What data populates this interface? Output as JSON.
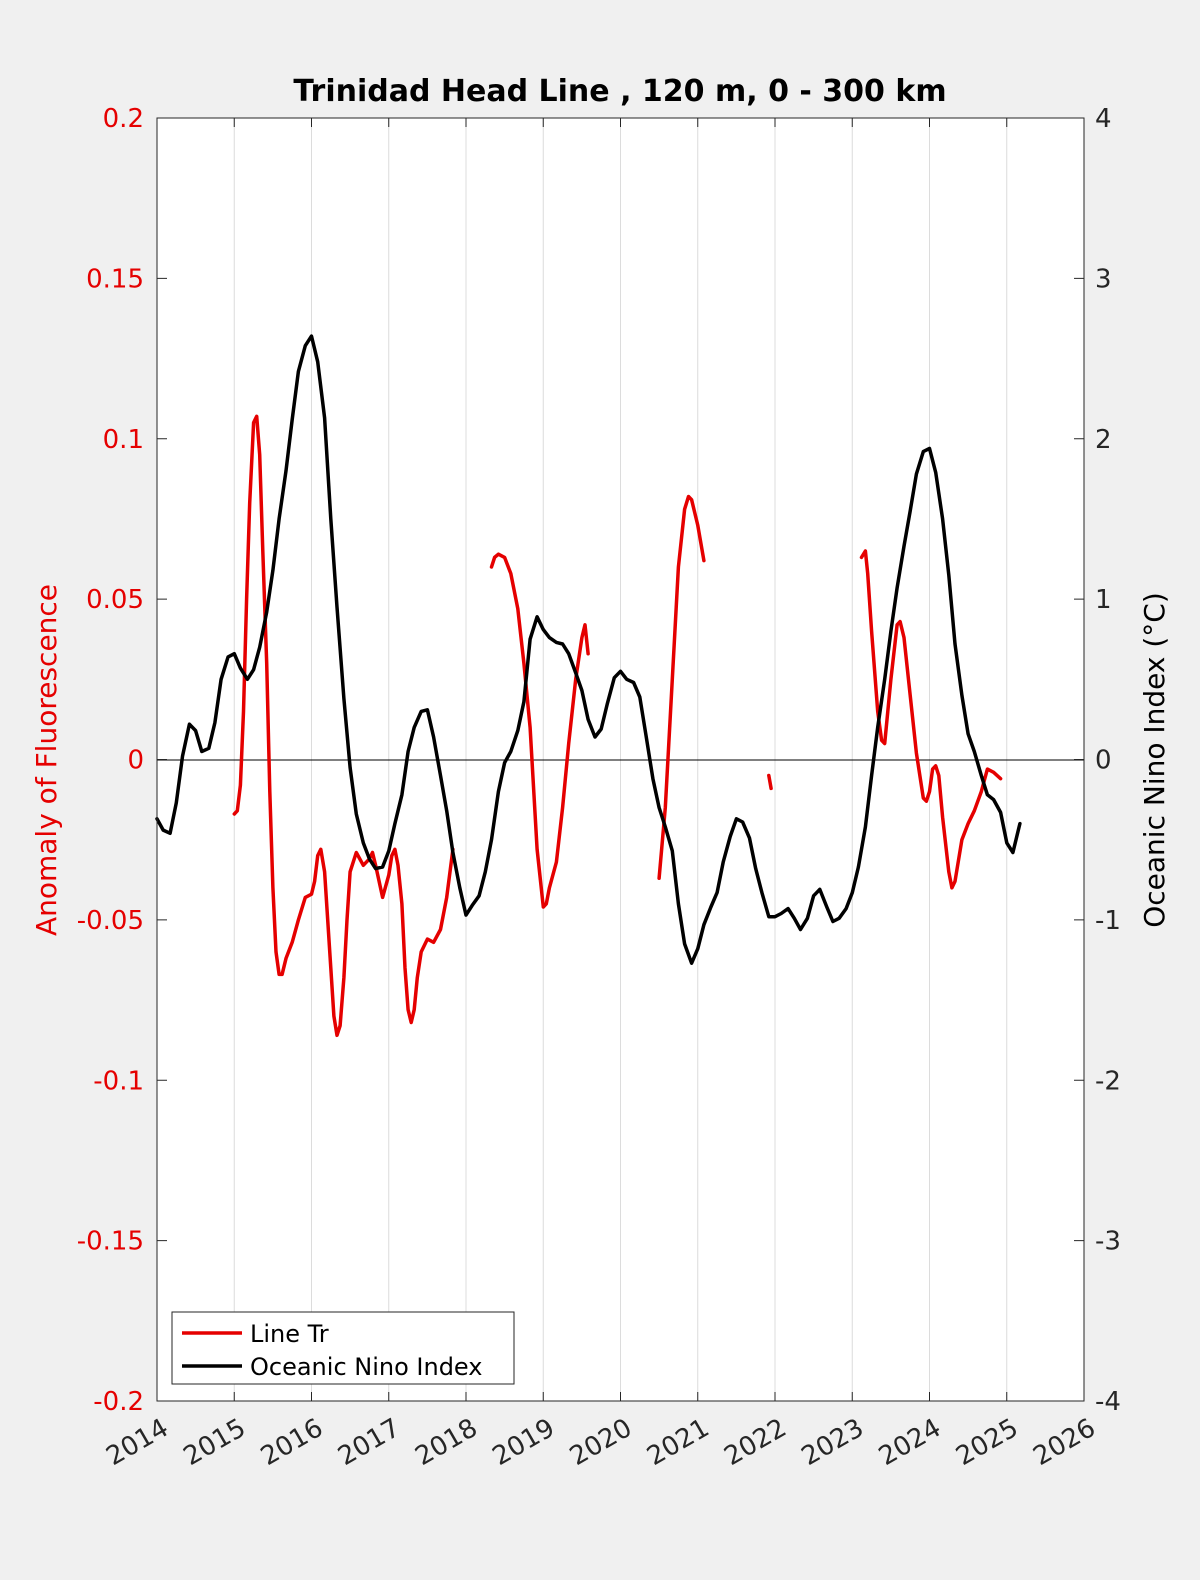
{
  "chart_data": {
    "type": "line",
    "title": "Trinidad Head Line , 120 m, 0 - 300 km",
    "xlabel": "",
    "ylabel_left": "Anomaly of Fluorescence",
    "ylabel_right": "Oceanic Nino Index (°C)",
    "xlim": [
      2014,
      2026
    ],
    "ylim_left": [
      -0.2,
      0.2
    ],
    "ylim_right": [
      -4,
      4
    ],
    "xticks": [
      "2014",
      "2015",
      "2016",
      "2017",
      "2018",
      "2019",
      "2020",
      "2021",
      "2022",
      "2023",
      "2024",
      "2025",
      "2026"
    ],
    "yticks_left": [
      "0.2",
      "0.15",
      "0.1",
      "0.05",
      "0",
      "-0.05",
      "-0.1",
      "-0.15",
      "-0.2"
    ],
    "yticks_right": [
      "4",
      "3",
      "2",
      "1",
      "0",
      "-1",
      "-2",
      "-3",
      "-4"
    ],
    "grid": "vertical",
    "legend_position": "bottom-left",
    "colors": {
      "line_tr": "#e50000",
      "oni": "#000000",
      "left_axis": "#e50000"
    },
    "series": [
      {
        "name": "Line Tr",
        "axis": "left",
        "segments": [
          [
            [
              2015.0,
              -0.017
            ],
            [
              2015.04,
              -0.016
            ],
            [
              2015.08,
              -0.008
            ],
            [
              2015.12,
              0.015
            ],
            [
              2015.16,
              0.05
            ],
            [
              2015.2,
              0.08
            ],
            [
              2015.25,
              0.105
            ],
            [
              2015.29,
              0.107
            ],
            [
              2015.33,
              0.095
            ],
            [
              2015.37,
              0.065
            ],
            [
              2015.42,
              0.03
            ],
            [
              2015.46,
              -0.01
            ],
            [
              2015.5,
              -0.04
            ],
            [
              2015.54,
              -0.06
            ],
            [
              2015.58,
              -0.067
            ],
            [
              2015.62,
              -0.067
            ],
            [
              2015.67,
              -0.062
            ],
            [
              2015.75,
              -0.057
            ],
            [
              2015.83,
              -0.05
            ],
            [
              2015.92,
              -0.043
            ],
            [
              2016.0,
              -0.042
            ],
            [
              2016.04,
              -0.038
            ],
            [
              2016.08,
              -0.03
            ],
            [
              2016.12,
              -0.028
            ],
            [
              2016.17,
              -0.035
            ],
            [
              2016.21,
              -0.05
            ],
            [
              2016.25,
              -0.065
            ],
            [
              2016.29,
              -0.08
            ],
            [
              2016.33,
              -0.086
            ],
            [
              2016.37,
              -0.083
            ],
            [
              2016.42,
              -0.068
            ],
            [
              2016.46,
              -0.05
            ],
            [
              2016.5,
              -0.035
            ],
            [
              2016.58,
              -0.029
            ],
            [
              2016.67,
              -0.033
            ],
            [
              2016.75,
              -0.031
            ],
            [
              2016.79,
              -0.029
            ],
            [
              2016.83,
              -0.033
            ],
            [
              2016.92,
              -0.043
            ],
            [
              2017.0,
              -0.036
            ],
            [
              2017.04,
              -0.03
            ],
            [
              2017.08,
              -0.028
            ],
            [
              2017.12,
              -0.033
            ],
            [
              2017.17,
              -0.045
            ],
            [
              2017.21,
              -0.065
            ],
            [
              2017.25,
              -0.078
            ],
            [
              2017.29,
              -0.082
            ],
            [
              2017.33,
              -0.078
            ],
            [
              2017.37,
              -0.068
            ],
            [
              2017.42,
              -0.06
            ],
            [
              2017.5,
              -0.056
            ],
            [
              2017.58,
              -0.057
            ],
            [
              2017.67,
              -0.053
            ],
            [
              2017.75,
              -0.043
            ],
            [
              2017.83,
              -0.028
            ]
          ],
          [
            [
              2018.33,
              0.06
            ],
            [
              2018.37,
              0.063
            ],
            [
              2018.42,
              0.064
            ],
            [
              2018.5,
              0.063
            ],
            [
              2018.58,
              0.058
            ],
            [
              2018.67,
              0.047
            ],
            [
              2018.75,
              0.03
            ],
            [
              2018.83,
              0.01
            ],
            [
              2018.92,
              -0.028
            ],
            [
              2019.0,
              -0.046
            ],
            [
              2019.04,
              -0.045
            ],
            [
              2019.08,
              -0.04
            ],
            [
              2019.17,
              -0.032
            ],
            [
              2019.25,
              -0.015
            ],
            [
              2019.33,
              0.005
            ],
            [
              2019.42,
              0.025
            ],
            [
              2019.5,
              0.038
            ],
            [
              2019.54,
              0.042
            ],
            [
              2019.58,
              0.033
            ]
          ],
          [
            [
              2020.5,
              -0.037
            ],
            [
              2020.58,
              -0.015
            ],
            [
              2020.67,
              0.025
            ],
            [
              2020.75,
              0.06
            ],
            [
              2020.83,
              0.078
            ],
            [
              2020.88,
              0.082
            ],
            [
              2020.92,
              0.081
            ],
            [
              2021.0,
              0.073
            ],
            [
              2021.08,
              0.062
            ]
          ],
          [
            [
              2021.92,
              -0.005
            ],
            [
              2021.95,
              -0.009
            ]
          ],
          [
            [
              2023.12,
              0.063
            ],
            [
              2023.17,
              0.065
            ],
            [
              2023.2,
              0.058
            ],
            [
              2023.25,
              0.04
            ],
            [
              2023.33,
              0.015
            ],
            [
              2023.38,
              0.006
            ],
            [
              2023.42,
              0.005
            ],
            [
              2023.5,
              0.025
            ],
            [
              2023.58,
              0.042
            ],
            [
              2023.62,
              0.043
            ],
            [
              2023.67,
              0.038
            ],
            [
              2023.75,
              0.02
            ],
            [
              2023.83,
              0.002
            ],
            [
              2023.92,
              -0.012
            ],
            [
              2023.96,
              -0.013
            ],
            [
              2024.0,
              -0.01
            ],
            [
              2024.04,
              -0.003
            ],
            [
              2024.08,
              -0.002
            ],
            [
              2024.12,
              -0.005
            ],
            [
              2024.17,
              -0.018
            ],
            [
              2024.25,
              -0.035
            ],
            [
              2024.29,
              -0.04
            ],
            [
              2024.33,
              -0.038
            ],
            [
              2024.42,
              -0.025
            ],
            [
              2024.5,
              -0.02
            ],
            [
              2024.58,
              -0.016
            ],
            [
              2024.67,
              -0.01
            ],
            [
              2024.75,
              -0.003
            ],
            [
              2024.83,
              -0.004
            ],
            [
              2024.92,
              -0.006
            ]
          ]
        ]
      },
      {
        "name": "Oceanic Nino Index",
        "axis": "right",
        "segments": [
          [
            [
              2014.0,
              -0.37
            ],
            [
              2014.08,
              -0.44
            ],
            [
              2014.17,
              -0.46
            ],
            [
              2014.25,
              -0.27
            ],
            [
              2014.33,
              0.02
            ],
            [
              2014.42,
              0.22
            ],
            [
              2014.5,
              0.18
            ],
            [
              2014.58,
              0.05
            ],
            [
              2014.67,
              0.07
            ],
            [
              2014.75,
              0.23
            ],
            [
              2014.83,
              0.5
            ],
            [
              2014.92,
              0.64
            ],
            [
              2015.0,
              0.66
            ],
            [
              2015.08,
              0.57
            ],
            [
              2015.17,
              0.5
            ],
            [
              2015.25,
              0.56
            ],
            [
              2015.33,
              0.7
            ],
            [
              2015.42,
              0.92
            ],
            [
              2015.5,
              1.18
            ],
            [
              2015.58,
              1.5
            ],
            [
              2015.67,
              1.8
            ],
            [
              2015.75,
              2.12
            ],
            [
              2015.83,
              2.42
            ],
            [
              2015.92,
              2.58
            ],
            [
              2016.0,
              2.64
            ],
            [
              2016.08,
              2.48
            ],
            [
              2016.17,
              2.13
            ],
            [
              2016.25,
              1.5
            ],
            [
              2016.33,
              0.95
            ],
            [
              2016.42,
              0.38
            ],
            [
              2016.5,
              -0.05
            ],
            [
              2016.58,
              -0.34
            ],
            [
              2016.67,
              -0.52
            ],
            [
              2016.75,
              -0.62
            ],
            [
              2016.83,
              -0.68
            ],
            [
              2016.92,
              -0.67
            ],
            [
              2017.0,
              -0.57
            ],
            [
              2017.08,
              -0.4
            ],
            [
              2017.17,
              -0.22
            ],
            [
              2017.25,
              0.05
            ],
            [
              2017.33,
              0.2
            ],
            [
              2017.42,
              0.3
            ],
            [
              2017.5,
              0.31
            ],
            [
              2017.58,
              0.14
            ],
            [
              2017.67,
              -0.1
            ],
            [
              2017.75,
              -0.32
            ],
            [
              2017.83,
              -0.58
            ],
            [
              2017.92,
              -0.8
            ],
            [
              2018.0,
              -0.97
            ],
            [
              2018.08,
              -0.91
            ],
            [
              2018.17,
              -0.85
            ],
            [
              2018.25,
              -0.7
            ],
            [
              2018.33,
              -0.5
            ],
            [
              2018.42,
              -0.2
            ],
            [
              2018.5,
              -0.02
            ],
            [
              2018.58,
              0.05
            ],
            [
              2018.67,
              0.18
            ],
            [
              2018.75,
              0.36
            ],
            [
              2018.83,
              0.75
            ],
            [
              2018.92,
              0.89
            ],
            [
              2019.0,
              0.81
            ],
            [
              2019.08,
              0.76
            ],
            [
              2019.17,
              0.73
            ],
            [
              2019.25,
              0.72
            ],
            [
              2019.33,
              0.66
            ],
            [
              2019.42,
              0.54
            ],
            [
              2019.5,
              0.43
            ],
            [
              2019.58,
              0.25
            ],
            [
              2019.67,
              0.14
            ],
            [
              2019.75,
              0.19
            ],
            [
              2019.83,
              0.35
            ],
            [
              2019.92,
              0.51
            ],
            [
              2020.0,
              0.55
            ],
            [
              2020.08,
              0.5
            ],
            [
              2020.17,
              0.48
            ],
            [
              2020.25,
              0.39
            ],
            [
              2020.33,
              0.15
            ],
            [
              2020.42,
              -0.12
            ],
            [
              2020.5,
              -0.3
            ],
            [
              2020.58,
              -0.42
            ],
            [
              2020.67,
              -0.57
            ],
            [
              2020.75,
              -0.9
            ],
            [
              2020.83,
              -1.15
            ],
            [
              2020.92,
              -1.27
            ],
            [
              2021.0,
              -1.18
            ],
            [
              2021.08,
              -1.03
            ],
            [
              2021.17,
              -0.92
            ],
            [
              2021.25,
              -0.83
            ],
            [
              2021.33,
              -0.64
            ],
            [
              2021.42,
              -0.48
            ],
            [
              2021.5,
              -0.37
            ],
            [
              2021.58,
              -0.39
            ],
            [
              2021.67,
              -0.49
            ],
            [
              2021.75,
              -0.68
            ],
            [
              2021.83,
              -0.83
            ],
            [
              2021.92,
              -0.98
            ],
            [
              2022.0,
              -0.98
            ],
            [
              2022.08,
              -0.96
            ],
            [
              2022.17,
              -0.93
            ],
            [
              2022.25,
              -0.99
            ],
            [
              2022.33,
              -1.06
            ],
            [
              2022.42,
              -0.99
            ],
            [
              2022.5,
              -0.85
            ],
            [
              2022.58,
              -0.81
            ],
            [
              2022.67,
              -0.92
            ],
            [
              2022.75,
              -1.01
            ],
            [
              2022.83,
              -0.99
            ],
            [
              2022.92,
              -0.93
            ],
            [
              2023.0,
              -0.83
            ],
            [
              2023.08,
              -0.67
            ],
            [
              2023.17,
              -0.42
            ],
            [
              2023.25,
              -0.1
            ],
            [
              2023.33,
              0.2
            ],
            [
              2023.42,
              0.5
            ],
            [
              2023.5,
              0.8
            ],
            [
              2023.58,
              1.07
            ],
            [
              2023.67,
              1.33
            ],
            [
              2023.75,
              1.55
            ],
            [
              2023.83,
              1.78
            ],
            [
              2023.92,
              1.92
            ],
            [
              2024.0,
              1.94
            ],
            [
              2024.08,
              1.79
            ],
            [
              2024.17,
              1.5
            ],
            [
              2024.25,
              1.15
            ],
            [
              2024.33,
              0.72
            ],
            [
              2024.42,
              0.4
            ],
            [
              2024.5,
              0.16
            ],
            [
              2024.58,
              0.05
            ],
            [
              2024.67,
              -0.1
            ],
            [
              2024.75,
              -0.22
            ],
            [
              2024.83,
              -0.25
            ],
            [
              2024.92,
              -0.33
            ],
            [
              2025.0,
              -0.52
            ],
            [
              2025.08,
              -0.58
            ],
            [
              2025.17,
              -0.4
            ]
          ]
        ]
      }
    ]
  },
  "legend": {
    "items": [
      {
        "label": "Line Tr",
        "color": "#e50000"
      },
      {
        "label": "Oceanic Nino Index",
        "color": "#000000"
      }
    ]
  }
}
